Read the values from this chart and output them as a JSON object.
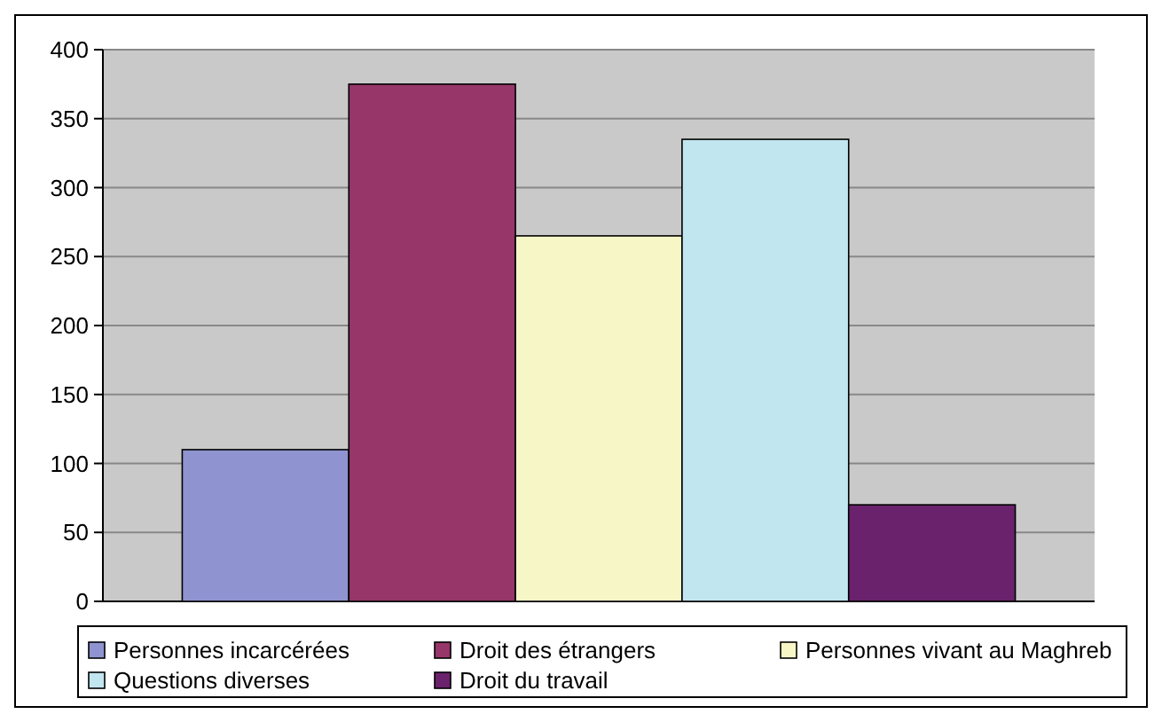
{
  "chart_data": {
    "type": "bar",
    "categories": [
      null
    ],
    "series": [
      {
        "name": "Personnes incarcérées",
        "color": "#8f94d0",
        "values": [
          110
        ]
      },
      {
        "name": "Droit des étrangers",
        "color": "#973669",
        "values": [
          375
        ]
      },
      {
        "name": "Personnes vivant au Maghreb",
        "color": "#f7f6c6",
        "values": [
          265
        ]
      },
      {
        "name": "Questions diverses",
        "color": "#c1e6f0",
        "values": [
          335
        ]
      },
      {
        "name": "Droit du travail",
        "color": "#6a226d",
        "values": [
          70
        ]
      }
    ],
    "ylim": [
      0,
      400
    ],
    "yticks": [
      0,
      50,
      100,
      150,
      200,
      250,
      300,
      350,
      400
    ],
    "grid": "y",
    "legend": "bottom"
  }
}
